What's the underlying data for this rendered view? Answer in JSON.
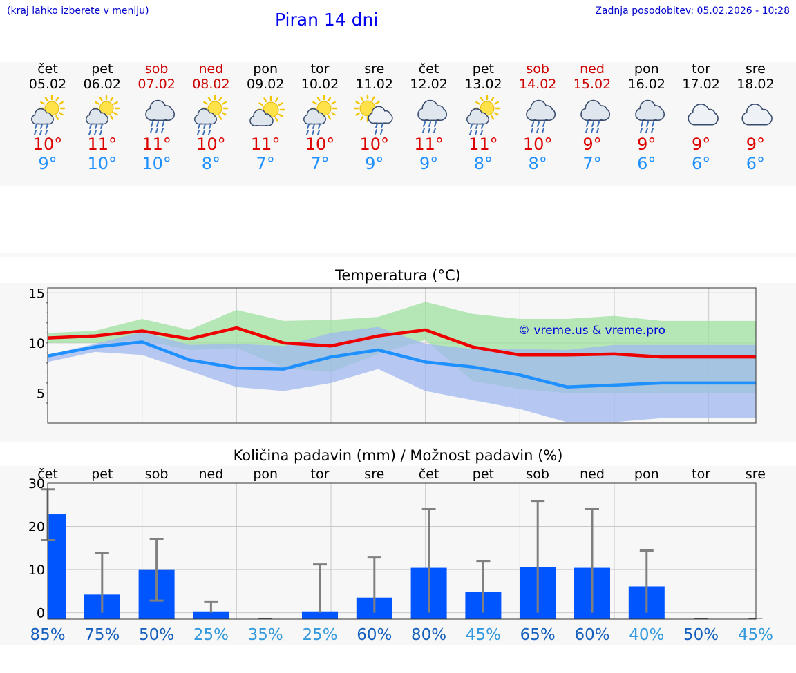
{
  "header": {
    "hint": "(kraj lahko izberete v meniju)",
    "title": "Piran 14 dni",
    "updated": "Zadnja posodobitev: 05.02.2026 - 10:28"
  },
  "days": [
    {
      "dow": "čet",
      "date": "05.02",
      "weekend": false,
      "icon": "sun-cloud-rain-icon",
      "tmax": "10°",
      "tmin": "9°"
    },
    {
      "dow": "pet",
      "date": "06.02",
      "weekend": false,
      "icon": "sun-cloud-rain-icon",
      "tmax": "11°",
      "tmin": "10°"
    },
    {
      "dow": "sob",
      "date": "07.02",
      "weekend": true,
      "icon": "cloud-rain-icon",
      "tmax": "11°",
      "tmin": "10°"
    },
    {
      "dow": "ned",
      "date": "08.02",
      "weekend": true,
      "icon": "sun-cloud-rain-icon",
      "tmax": "10°",
      "tmin": "8°"
    },
    {
      "dow": "pon",
      "date": "09.02",
      "weekend": false,
      "icon": "sun-cloud-icon",
      "tmax": "11°",
      "tmin": "7°"
    },
    {
      "dow": "tor",
      "date": "10.02",
      "weekend": false,
      "icon": "sun-cloud-rain-icon",
      "tmax": "10°",
      "tmin": "7°"
    },
    {
      "dow": "sre",
      "date": "11.02",
      "weekend": false,
      "icon": "sun-cloud-light-rain-icon",
      "tmax": "10°",
      "tmin": "9°"
    },
    {
      "dow": "čet",
      "date": "12.02",
      "weekend": false,
      "icon": "cloud-rain-icon",
      "tmax": "11°",
      "tmin": "9°"
    },
    {
      "dow": "pet",
      "date": "13.02",
      "weekend": false,
      "icon": "sun-cloud-rain-icon",
      "tmax": "11°",
      "tmin": "8°"
    },
    {
      "dow": "sob",
      "date": "14.02",
      "weekend": true,
      "icon": "cloud-rain-icon",
      "tmax": "10°",
      "tmin": "8°"
    },
    {
      "dow": "ned",
      "date": "15.02",
      "weekend": true,
      "icon": "cloud-rain-icon",
      "tmax": "9°",
      "tmin": "7°"
    },
    {
      "dow": "pon",
      "date": "16.02",
      "weekend": false,
      "icon": "cloud-rain-icon",
      "tmax": "9°",
      "tmin": "6°"
    },
    {
      "dow": "tor",
      "date": "17.02",
      "weekend": false,
      "icon": "cloud-icon",
      "tmax": "9°",
      "tmin": "6°"
    },
    {
      "dow": "sre",
      "date": "18.02",
      "weekend": false,
      "icon": "cloud-icon",
      "tmax": "9°",
      "tmin": "6°"
    }
  ],
  "colors": {
    "max_line": "#ee0000",
    "min_line": "#1e90ff",
    "max_band": "#9fe09f",
    "min_band": "#a0b8f0",
    "bar": "#0055ff",
    "error_bar": "#808080",
    "pct_high": "#1560bd",
    "pct_low": "#3399dd"
  },
  "chart_data": [
    {
      "type": "line",
      "title": "Temperatura (°C)",
      "xlabel": "",
      "ylabel": "",
      "ylim": [
        2.0,
        15.5
      ],
      "yticks": [
        "5",
        "10",
        "15"
      ],
      "watermark": "© vreme.us & vreme.pro",
      "x": [
        0,
        1,
        2,
        3,
        4,
        5,
        6,
        7,
        8,
        9,
        10,
        11,
        12,
        13,
        14,
        15
      ],
      "series": [
        {
          "name": "max",
          "values": [
            10.5,
            10.7,
            11.2,
            10.4,
            11.5,
            10.0,
            9.7,
            10.7,
            11.3,
            9.6,
            8.8,
            8.8,
            8.9,
            8.6,
            8.6,
            8.6
          ]
        },
        {
          "name": "min",
          "values": [
            8.7,
            9.6,
            10.1,
            8.3,
            7.5,
            7.4,
            8.6,
            9.3,
            8.1,
            7.6,
            6.8,
            5.6,
            5.8,
            6.0,
            6.0,
            6.0
          ]
        }
      ],
      "bands": [
        {
          "name": "max-range",
          "upper": [
            11.0,
            11.2,
            12.4,
            11.3,
            13.3,
            12.2,
            12.3,
            12.6,
            14.1,
            12.9,
            12.4,
            12.4,
            12.7,
            12.2,
            12.2,
            12.2
          ],
          "lower": [
            10.0,
            10.0,
            10.3,
            9.3,
            9.5,
            7.5,
            7.1,
            8.9,
            10.3,
            6.2,
            5.4,
            5.0,
            5.0,
            5.0,
            5.0,
            5.0
          ]
        },
        {
          "name": "min-range",
          "upper": [
            8.8,
            9.9,
            11.1,
            9.8,
            9.9,
            9.7,
            11.0,
            11.6,
            9.9,
            9.4,
            9.4,
            9.3,
            9.8,
            9.8,
            9.8,
            9.8
          ],
          "lower": [
            8.1,
            9.1,
            8.8,
            7.2,
            5.6,
            5.2,
            6.0,
            7.4,
            5.2,
            4.3,
            3.4,
            2.1,
            2.1,
            2.5,
            2.5,
            2.5
          ]
        }
      ]
    },
    {
      "type": "bar",
      "title": "Količina padavin (mm) / Možnost padavin (%)",
      "xlabel": "",
      "ylabel": "",
      "ylim": [
        -1.5,
        30
      ],
      "yticks": [
        "0",
        "10",
        "20",
        "30"
      ],
      "categories": [
        "čet",
        "pet",
        "sob",
        "ned",
        "pon",
        "tor",
        "sre",
        "čet",
        "pet",
        "sob",
        "ned",
        "pon",
        "tor",
        "sre"
      ],
      "values": [
        22.8,
        4.2,
        9.9,
        0.3,
        0.0,
        0.3,
        3.5,
        10.4,
        4.8,
        10.6,
        10.4,
        6.1,
        0.0,
        0.0
      ],
      "error_low": [
        16.8,
        0.0,
        2.8,
        0.0,
        0.0,
        0.0,
        0.0,
        0.0,
        0.0,
        0.0,
        0.0,
        0.0,
        0.0,
        0.0
      ],
      "error_high": [
        28.6,
        13.8,
        17.0,
        2.6,
        0.0,
        11.2,
        12.8,
        24.0,
        12.0,
        25.9,
        24.0,
        14.4,
        0.0,
        0.0
      ],
      "probability_labels": [
        "85%",
        "75%",
        "50%",
        "25%",
        "35%",
        "25%",
        "60%",
        "80%",
        "45%",
        "65%",
        "60%",
        "40%",
        "50%",
        "45%"
      ]
    }
  ]
}
